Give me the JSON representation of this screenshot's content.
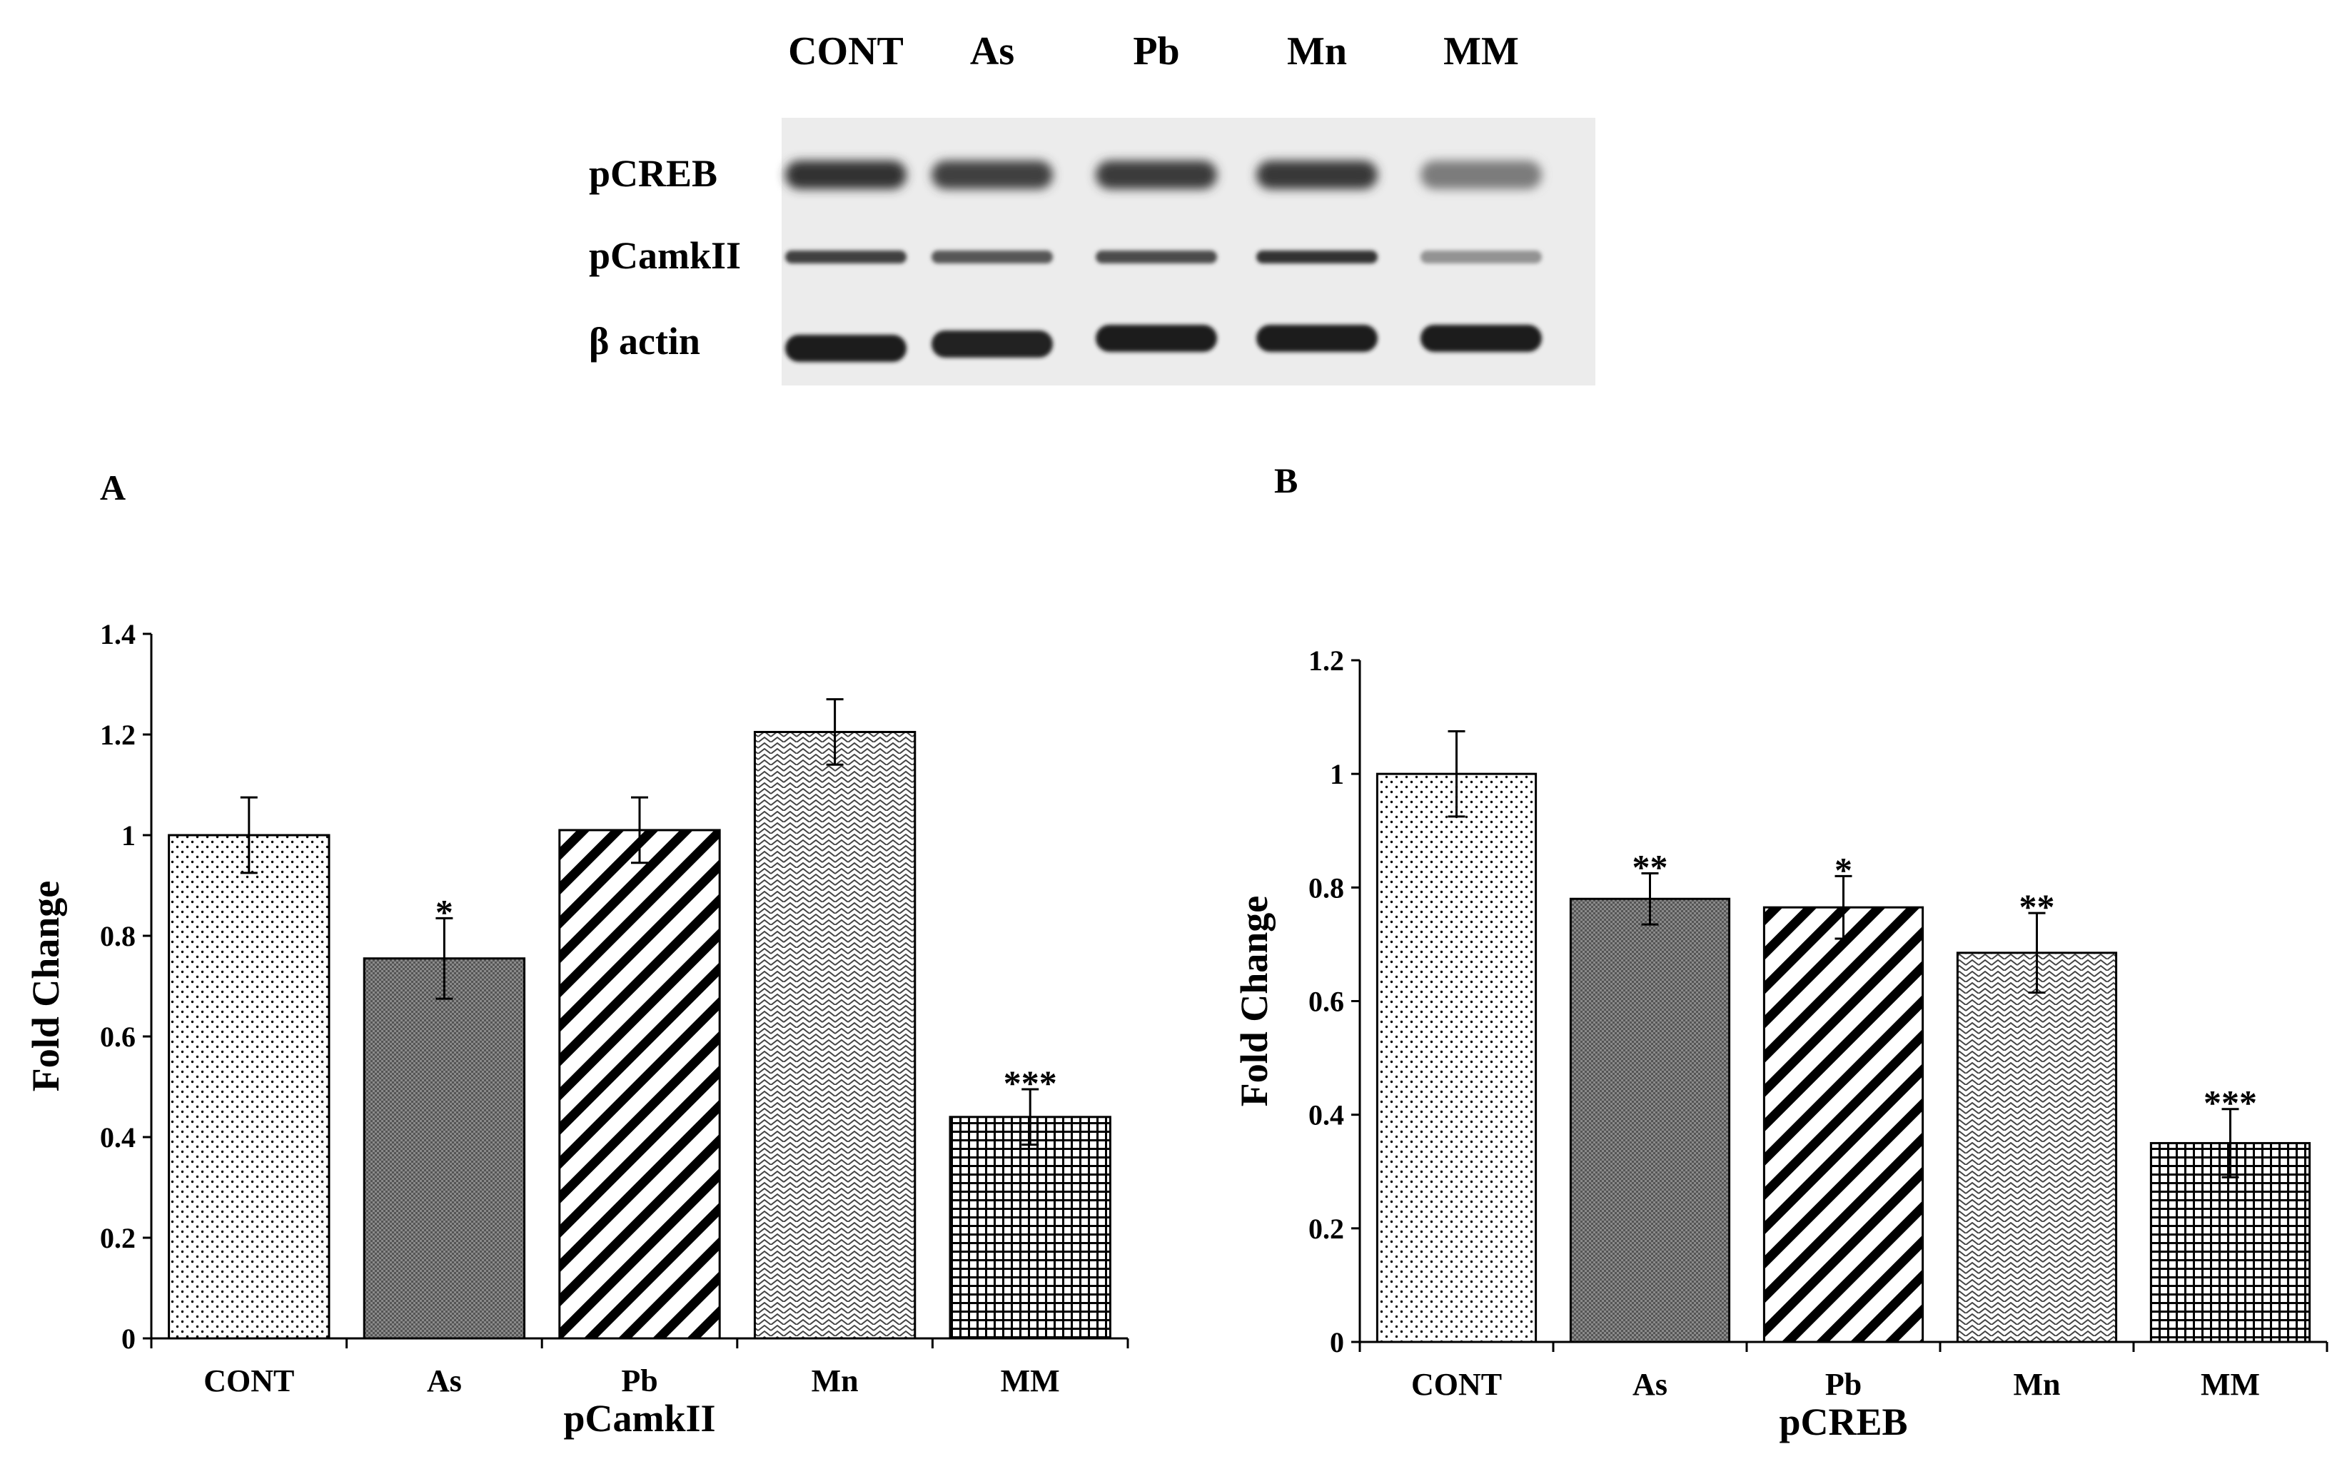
{
  "blot": {
    "lanes": [
      "CONT",
      "As",
      "Pb",
      "Mn",
      "MM"
    ],
    "rows": [
      {
        "label": "pCREB",
        "intensities": [
          0.85,
          0.8,
          0.82,
          0.83,
          0.55
        ]
      },
      {
        "label": "pCamkII",
        "intensities": [
          0.8,
          0.7,
          0.75,
          0.85,
          0.45
        ]
      },
      {
        "label": "β  actin",
        "intensities": [
          0.95,
          0.92,
          0.95,
          0.95,
          0.95
        ]
      }
    ]
  },
  "chart_data": [
    {
      "type": "bar",
      "panel_label": "A",
      "title": "",
      "xlabel": "pCamkII",
      "ylabel": "Fold Change",
      "ylim": [
        0,
        1.4
      ],
      "yticks": [
        "0",
        "0.2",
        "0.4",
        "0.6",
        "0.8",
        "1",
        "1.2",
        "1.4"
      ],
      "categories": [
        "CONT",
        "As",
        "Pb",
        "Mn",
        "MM"
      ],
      "values": [
        1.0,
        0.755,
        1.01,
        1.205,
        0.44
      ],
      "errors": [
        0.075,
        0.08,
        0.065,
        0.065,
        0.055
      ],
      "significance": [
        "",
        "*",
        "",
        "",
        "***"
      ],
      "patterns": [
        "dots",
        "dense-dots",
        "diag-stripes",
        "zigzag",
        "grid"
      ]
    },
    {
      "type": "bar",
      "panel_label": "B",
      "title": "",
      "xlabel": "pCREB",
      "ylabel": "Fold Change",
      "ylim": [
        0,
        1.2
      ],
      "yticks": [
        "0",
        "0.2",
        "0.4",
        "0.6",
        "0.8",
        "1",
        "1.2"
      ],
      "categories": [
        "CONT",
        "As",
        "Pb",
        "Mn",
        "MM"
      ],
      "values": [
        1.0,
        0.78,
        0.765,
        0.685,
        0.35
      ],
      "errors": [
        0.075,
        0.045,
        0.055,
        0.07,
        0.06
      ],
      "significance": [
        "",
        "**",
        "*",
        "**",
        "***"
      ],
      "patterns": [
        "dots",
        "dense-dots",
        "diag-stripes",
        "zigzag",
        "grid"
      ]
    }
  ]
}
